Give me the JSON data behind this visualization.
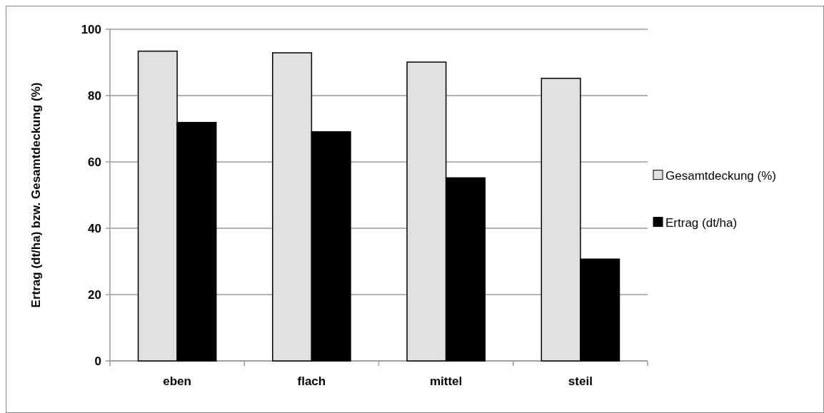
{
  "chart_data": {
    "type": "bar",
    "ylabel": "Ertrag (dt/ha) bzw. Gesamtdeckung (%)",
    "categories": [
      "eben",
      "flach",
      "mittel",
      "steil"
    ],
    "series": [
      {
        "name": "Gesamtdeckung (%)",
        "color": "#e0e0e0",
        "values": [
          93.4,
          92.9,
          90.1,
          85.2
        ]
      },
      {
        "name": "Ertrag (dt/ha)",
        "color": "#000000",
        "values": [
          71.9,
          69.1,
          55.2,
          30.7
        ]
      }
    ],
    "ylim": [
      0,
      100
    ],
    "yticks": [
      0,
      20,
      40,
      60,
      80,
      100
    ],
    "grid": "y",
    "legend": "right"
  }
}
